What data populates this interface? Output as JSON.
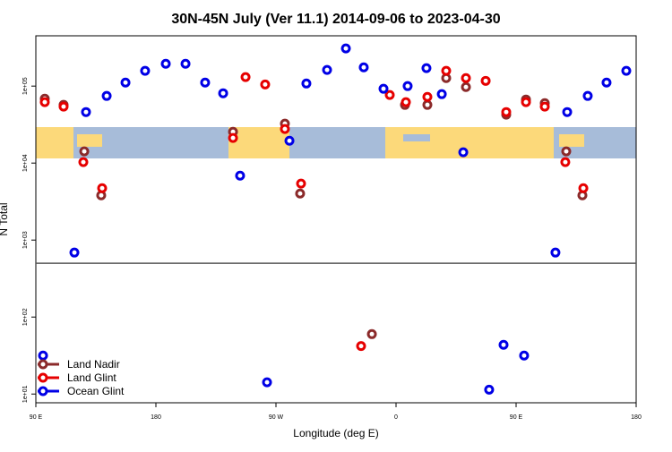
{
  "chart_data": {
    "type": "scatter",
    "title": "30N-45N July (Ver 11.1)   2014-09-06 to 2023-04-30",
    "x_label": "Longitude (deg E)",
    "y_label": "N Total",
    "xlim": [
      90,
      540
    ],
    "xticks": [
      {
        "value": 90,
        "label": "90 E"
      },
      {
        "value": 180,
        "label": "180"
      },
      {
        "value": 270,
        "label": "90 W"
      },
      {
        "value": 360,
        "label": "0"
      },
      {
        "value": 450,
        "label": "90 E"
      },
      {
        "value": 540,
        "label": "180"
      }
    ],
    "ylim": [
      7.7,
      450000
    ],
    "log_y": true,
    "yticks": [
      {
        "value": 10,
        "label": "1e+01"
      },
      {
        "value": 100,
        "label": "1e+02"
      },
      {
        "value": 1000,
        "label": "1e+03"
      },
      {
        "value": 10000,
        "label": "1e+04"
      },
      {
        "value": 100000,
        "label": "1e+05"
      }
    ],
    "reference_line": 500,
    "legend": "bottom-left",
    "series": [
      {
        "name": "Land Nadir",
        "color": "#8b2a2a",
        "x": [
          96.7,
          110.8,
          126.3,
          139.0,
          237.8,
          276.7,
          288.1,
          341.9,
          366.7,
          383.5,
          397.6,
          412.4,
          442.6,
          457.4,
          471.5,
          487.6,
          499.7
        ],
        "values": [
          68700,
          57000,
          14200,
          3810,
          25500,
          32500,
          4020,
          60,
          57000,
          57000,
          127000,
          97300,
          42500,
          66900,
          60100,
          14200,
          3810
        ]
      },
      {
        "name": "Land Glint",
        "color": "#e60000",
        "x": [
          96.7,
          110.8,
          125.6,
          139.7,
          237.8,
          247.2,
          261.9,
          276.7,
          288.8,
          333.8,
          355.3,
          367.4,
          383.5,
          397.6,
          412.4,
          427.2,
          442.6,
          457.4,
          471.5,
          486.9,
          500.4
        ],
        "values": [
          61800,
          54100,
          10300,
          4720,
          21200,
          131000,
          105000,
          27700,
          5410,
          42,
          76600,
          61800,
          72400,
          158000,
          127000,
          117000,
          46000,
          61800,
          54100,
          10300,
          4720
        ]
      },
      {
        "name": "Ocean Glint",
        "color": "#0000e6",
        "x": [
          95.4,
          118.9,
          127.6,
          143.1,
          157.2,
          171.9,
          187.4,
          202.2,
          216.9,
          230.4,
          243.1,
          263.3,
          280.1,
          292.8,
          308.3,
          322.4,
          335.8,
          350.6,
          368.7,
          382.8,
          394.3,
          410.4,
          429.8,
          440.6,
          456.0,
          479.5,
          488.3,
          503.7,
          517.8,
          532.6
        ],
        "values": [
          31.6,
          688,
          46000,
          74500,
          111000,
          158000,
          195000,
          195000,
          111000,
          80700,
          6870,
          14.2,
          19500,
          108000,
          162000,
          308000,
          175000,
          92300,
          100000,
          171000,
          78600,
          13800,
          11.4,
          43.6,
          31.6,
          688,
          46000,
          74500,
          111000,
          158000
        ]
      }
    ]
  }
}
